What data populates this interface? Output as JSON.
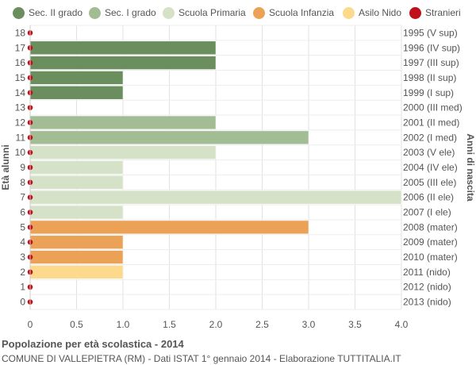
{
  "legend": [
    {
      "label": "Sec. II grado",
      "color": "#6b8e5e"
    },
    {
      "label": "Sec. I grado",
      "color": "#a2bd94"
    },
    {
      "label": "Scuola Primaria",
      "color": "#d5e2c8"
    },
    {
      "label": "Scuola Infanzia",
      "color": "#eba257"
    },
    {
      "label": "Asilo Nido",
      "color": "#fcd98b"
    },
    {
      "label": "Stranieri",
      "color": "#c0101a"
    }
  ],
  "footer": {
    "title": "Popolazione per età scolastica - 2014",
    "subtitle": "COMUNE DI VALLEPIETRA (RM) - Dati ISTAT 1° gennaio 2014 - Elaborazione TUTTITALIA.IT"
  },
  "chart_data": {
    "type": "bar",
    "orientation": "horizontal",
    "ylabel": "Età alunni",
    "ylabel_right": "Anni di nascita",
    "xlim": [
      0,
      4.0
    ],
    "xticks": [
      "0",
      "0.5",
      "1.0",
      "1.5",
      "2.0",
      "2.5",
      "3.0",
      "3.5",
      "4.0"
    ],
    "grid": true,
    "rows": [
      {
        "age": "18",
        "year": "1995 (V sup)",
        "value": 0,
        "series": 0,
        "stranieri": 0
      },
      {
        "age": "17",
        "year": "1996 (IV sup)",
        "value": 2,
        "series": 0,
        "stranieri": 0
      },
      {
        "age": "16",
        "year": "1997 (III sup)",
        "value": 2,
        "series": 0,
        "stranieri": 0
      },
      {
        "age": "15",
        "year": "1998 (II sup)",
        "value": 1,
        "series": 0,
        "stranieri": 0
      },
      {
        "age": "14",
        "year": "1999 (I sup)",
        "value": 1,
        "series": 0,
        "stranieri": 0
      },
      {
        "age": "13",
        "year": "2000 (III med)",
        "value": 0,
        "series": 1,
        "stranieri": 0
      },
      {
        "age": "12",
        "year": "2001 (II med)",
        "value": 2,
        "series": 1,
        "stranieri": 0
      },
      {
        "age": "11",
        "year": "2002 (I med)",
        "value": 3,
        "series": 1,
        "stranieri": 0
      },
      {
        "age": "10",
        "year": "2003 (V ele)",
        "value": 2,
        "series": 2,
        "stranieri": 0
      },
      {
        "age": "9",
        "year": "2004 (IV ele)",
        "value": 1,
        "series": 2,
        "stranieri": 0
      },
      {
        "age": "8",
        "year": "2005 (III ele)",
        "value": 1,
        "series": 2,
        "stranieri": 0
      },
      {
        "age": "7",
        "year": "2006 (II ele)",
        "value": 4,
        "series": 2,
        "stranieri": 0
      },
      {
        "age": "6",
        "year": "2007 (I ele)",
        "value": 1,
        "series": 2,
        "stranieri": 0
      },
      {
        "age": "5",
        "year": "2008 (mater)",
        "value": 3,
        "series": 3,
        "stranieri": 0
      },
      {
        "age": "4",
        "year": "2009 (mater)",
        "value": 1,
        "series": 3,
        "stranieri": 0
      },
      {
        "age": "3",
        "year": "2010 (mater)",
        "value": 1,
        "series": 3,
        "stranieri": 0
      },
      {
        "age": "2",
        "year": "2011 (nido)",
        "value": 1,
        "series": 4,
        "stranieri": 0
      },
      {
        "age": "1",
        "year": "2012 (nido)",
        "value": 0,
        "series": 4,
        "stranieri": 0
      },
      {
        "age": "0",
        "year": "2013 (nido)",
        "value": 0,
        "series": 4,
        "stranieri": 0
      }
    ]
  }
}
